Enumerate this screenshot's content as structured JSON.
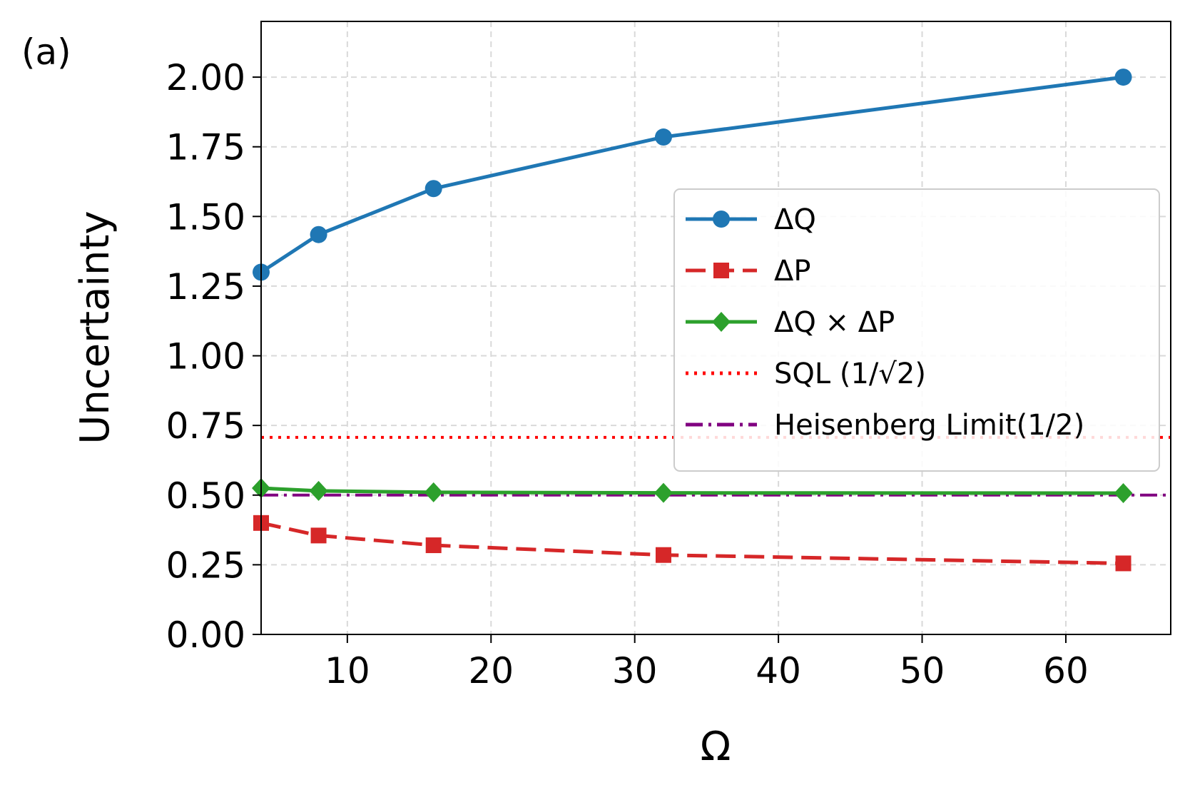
{
  "panel_label": "(a)",
  "chart_data": {
    "type": "line",
    "title": "",
    "xlabel": "Ω",
    "ylabel": "Uncertainty",
    "xlim": [
      4,
      67.3
    ],
    "ylim": [
      0,
      2.2
    ],
    "xticks": [
      10,
      20,
      30,
      40,
      50,
      60
    ],
    "yticks": [
      0.0,
      0.25,
      0.5,
      0.75,
      1.0,
      1.25,
      1.5,
      1.75,
      2.0
    ],
    "xtick_labels": [
      "10",
      "20",
      "30",
      "40",
      "50",
      "60"
    ],
    "ytick_labels": [
      "0.00",
      "0.25",
      "0.50",
      "0.75",
      "1.00",
      "1.25",
      "1.50",
      "1.75",
      "2.00"
    ],
    "grid": true,
    "legend_position": "center-right",
    "x": [
      4,
      8,
      16,
      32,
      64
    ],
    "series": [
      {
        "name": "ΔQ",
        "values": [
          1.3,
          1.435,
          1.6,
          1.785,
          2.0
        ],
        "color": "#1f77b4",
        "marker": "circle",
        "linestyle": "solid"
      },
      {
        "name": "ΔP",
        "values": [
          0.4,
          0.355,
          0.32,
          0.285,
          0.255
        ],
        "color": "#d62728",
        "marker": "square",
        "linestyle": "dashed"
      },
      {
        "name": "ΔQ × ΔP",
        "values": [
          0.525,
          0.515,
          0.51,
          0.508,
          0.507
        ],
        "color": "#2ca02c",
        "marker": "diamond",
        "linestyle": "solid"
      }
    ],
    "reference_lines": [
      {
        "name": "SQL (1/√2)",
        "value": 0.7071,
        "color": "#ff0000",
        "linestyle": "dotted"
      },
      {
        "name": "Heisenberg Limit(1/2)",
        "value": 0.5,
        "color": "#800080",
        "linestyle": "dashdot"
      }
    ]
  }
}
